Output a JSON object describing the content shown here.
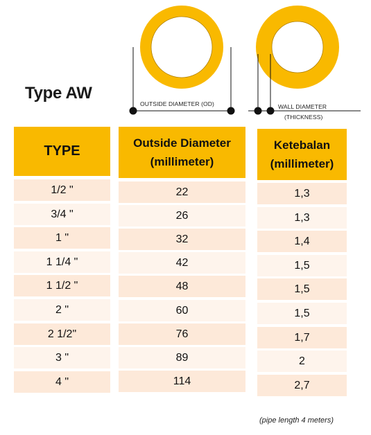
{
  "title": "Type AW",
  "diagram": {
    "outside_diameter_label": "OUTSIDE DIAMETER (OD)",
    "wall_diameter_label": "WALL DIAMETER",
    "wall_thickness_label": "(THICKNESS)"
  },
  "columns": {
    "type_header": "TYPE",
    "od_header_line1": "Outside Diameter",
    "od_header_line2": "(millimeter)",
    "thickness_header_line1": "Ketebalan",
    "thickness_header_line2": "(millimeter)"
  },
  "rows": [
    {
      "type": "1/2 \"",
      "od": "22",
      "thickness": "1,3"
    },
    {
      "type": "3/4 \"",
      "od": "26",
      "thickness": "1,3"
    },
    {
      "type": "1 \"",
      "od": "32",
      "thickness": "1,4"
    },
    {
      "type": "1 1/4 \"",
      "od": "42",
      "thickness": "1,5"
    },
    {
      "type": "1 1/2 \"",
      "od": "48",
      "thickness": "1,5"
    },
    {
      "type": "2 \"",
      "od": "60",
      "thickness": "1,5"
    },
    {
      "type": "2 1/2\"",
      "od": "76",
      "thickness": "1,7"
    },
    {
      "type": "3 \"",
      "od": "89",
      "thickness": "2"
    },
    {
      "type": "4 \"",
      "od": "114",
      "thickness": "2,7"
    }
  ],
  "footnote": "(pipe length 4 meters)",
  "colors": {
    "header": "#f9b900",
    "pipe_ring": "#f9b900",
    "row_even": "#fde9d9",
    "row_odd": "#fef4ec"
  }
}
